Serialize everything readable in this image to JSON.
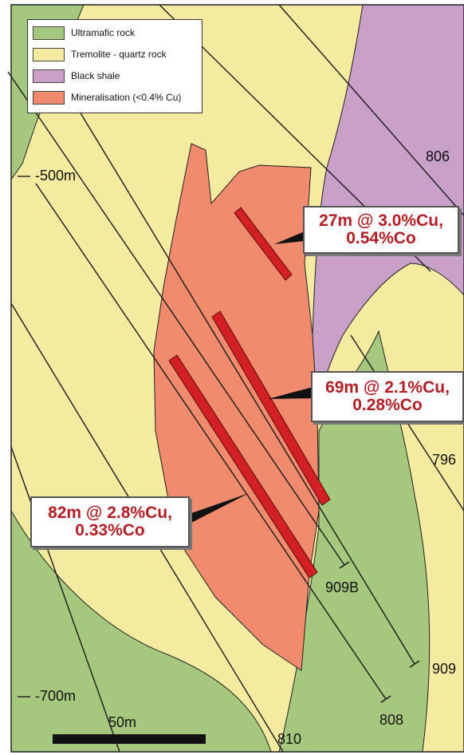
{
  "legend": {
    "items": [
      {
        "label": "Ultramafic rock",
        "color": "#a6c87e"
      },
      {
        "label": "Tremolite - quartz rock",
        "color": "#f5eba0"
      },
      {
        "label": "Black shale",
        "color": "#c9a0c8"
      },
      {
        "label": "Mineralisation (<0.4% Cu)",
        "color": "#f08b6e"
      }
    ]
  },
  "depth_labels": [
    "-500m",
    "-700m"
  ],
  "drillholes": [
    "806",
    "796",
    "909B",
    "909",
    "808",
    "810"
  ],
  "intercepts": [
    {
      "line1": "27m @ 3.0%Cu,",
      "line2": "0.54%Co"
    },
    {
      "line1": "69m @ 2.1%Cu,",
      "line2": "0.28%Co"
    },
    {
      "line1": "82m @ 2.8%Cu,",
      "line2": "0.33%Co"
    }
  ],
  "scale_bar": {
    "label": "50m"
  },
  "colors": {
    "intercept_bar": "#d22024",
    "intercept_text": "#b11e24",
    "background": "#f5eba0"
  }
}
